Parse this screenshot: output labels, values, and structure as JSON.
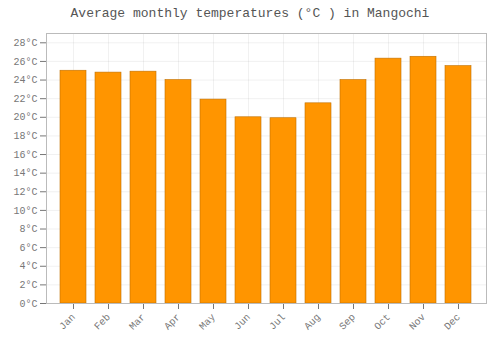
{
  "chart_data": {
    "type": "bar",
    "title": "Average monthly temperatures (°C ) in Mangochi",
    "categories": [
      "Jan",
      "Feb",
      "Mar",
      "Apr",
      "May",
      "Jun",
      "Jul",
      "Aug",
      "Sep",
      "Oct",
      "Nov",
      "Dec"
    ],
    "values": [
      25.0,
      24.8,
      24.9,
      24.0,
      21.9,
      20.0,
      19.9,
      21.5,
      24.0,
      26.3,
      26.5,
      25.5
    ],
    "color": "#FF9500",
    "ylim": [
      0,
      29
    ],
    "yticks": [
      {
        "value": 0,
        "label": "0°C"
      },
      {
        "value": 2,
        "label": "2°C"
      },
      {
        "value": 4,
        "label": "4°C"
      },
      {
        "value": 6,
        "label": "6°C"
      },
      {
        "value": 8,
        "label": "8°C"
      },
      {
        "value": 10,
        "label": "10°C"
      },
      {
        "value": 12,
        "label": "12°C"
      },
      {
        "value": 14,
        "label": "14°C"
      },
      {
        "value": 16,
        "label": "16°C"
      },
      {
        "value": 18,
        "label": "18°C"
      },
      {
        "value": 20,
        "label": "20°C"
      },
      {
        "value": 22,
        "label": "22°C"
      },
      {
        "value": 24,
        "label": "24°C"
      },
      {
        "value": 26,
        "label": "26°C"
      },
      {
        "value": 28,
        "label": "28°C"
      }
    ],
    "grid": true
  }
}
